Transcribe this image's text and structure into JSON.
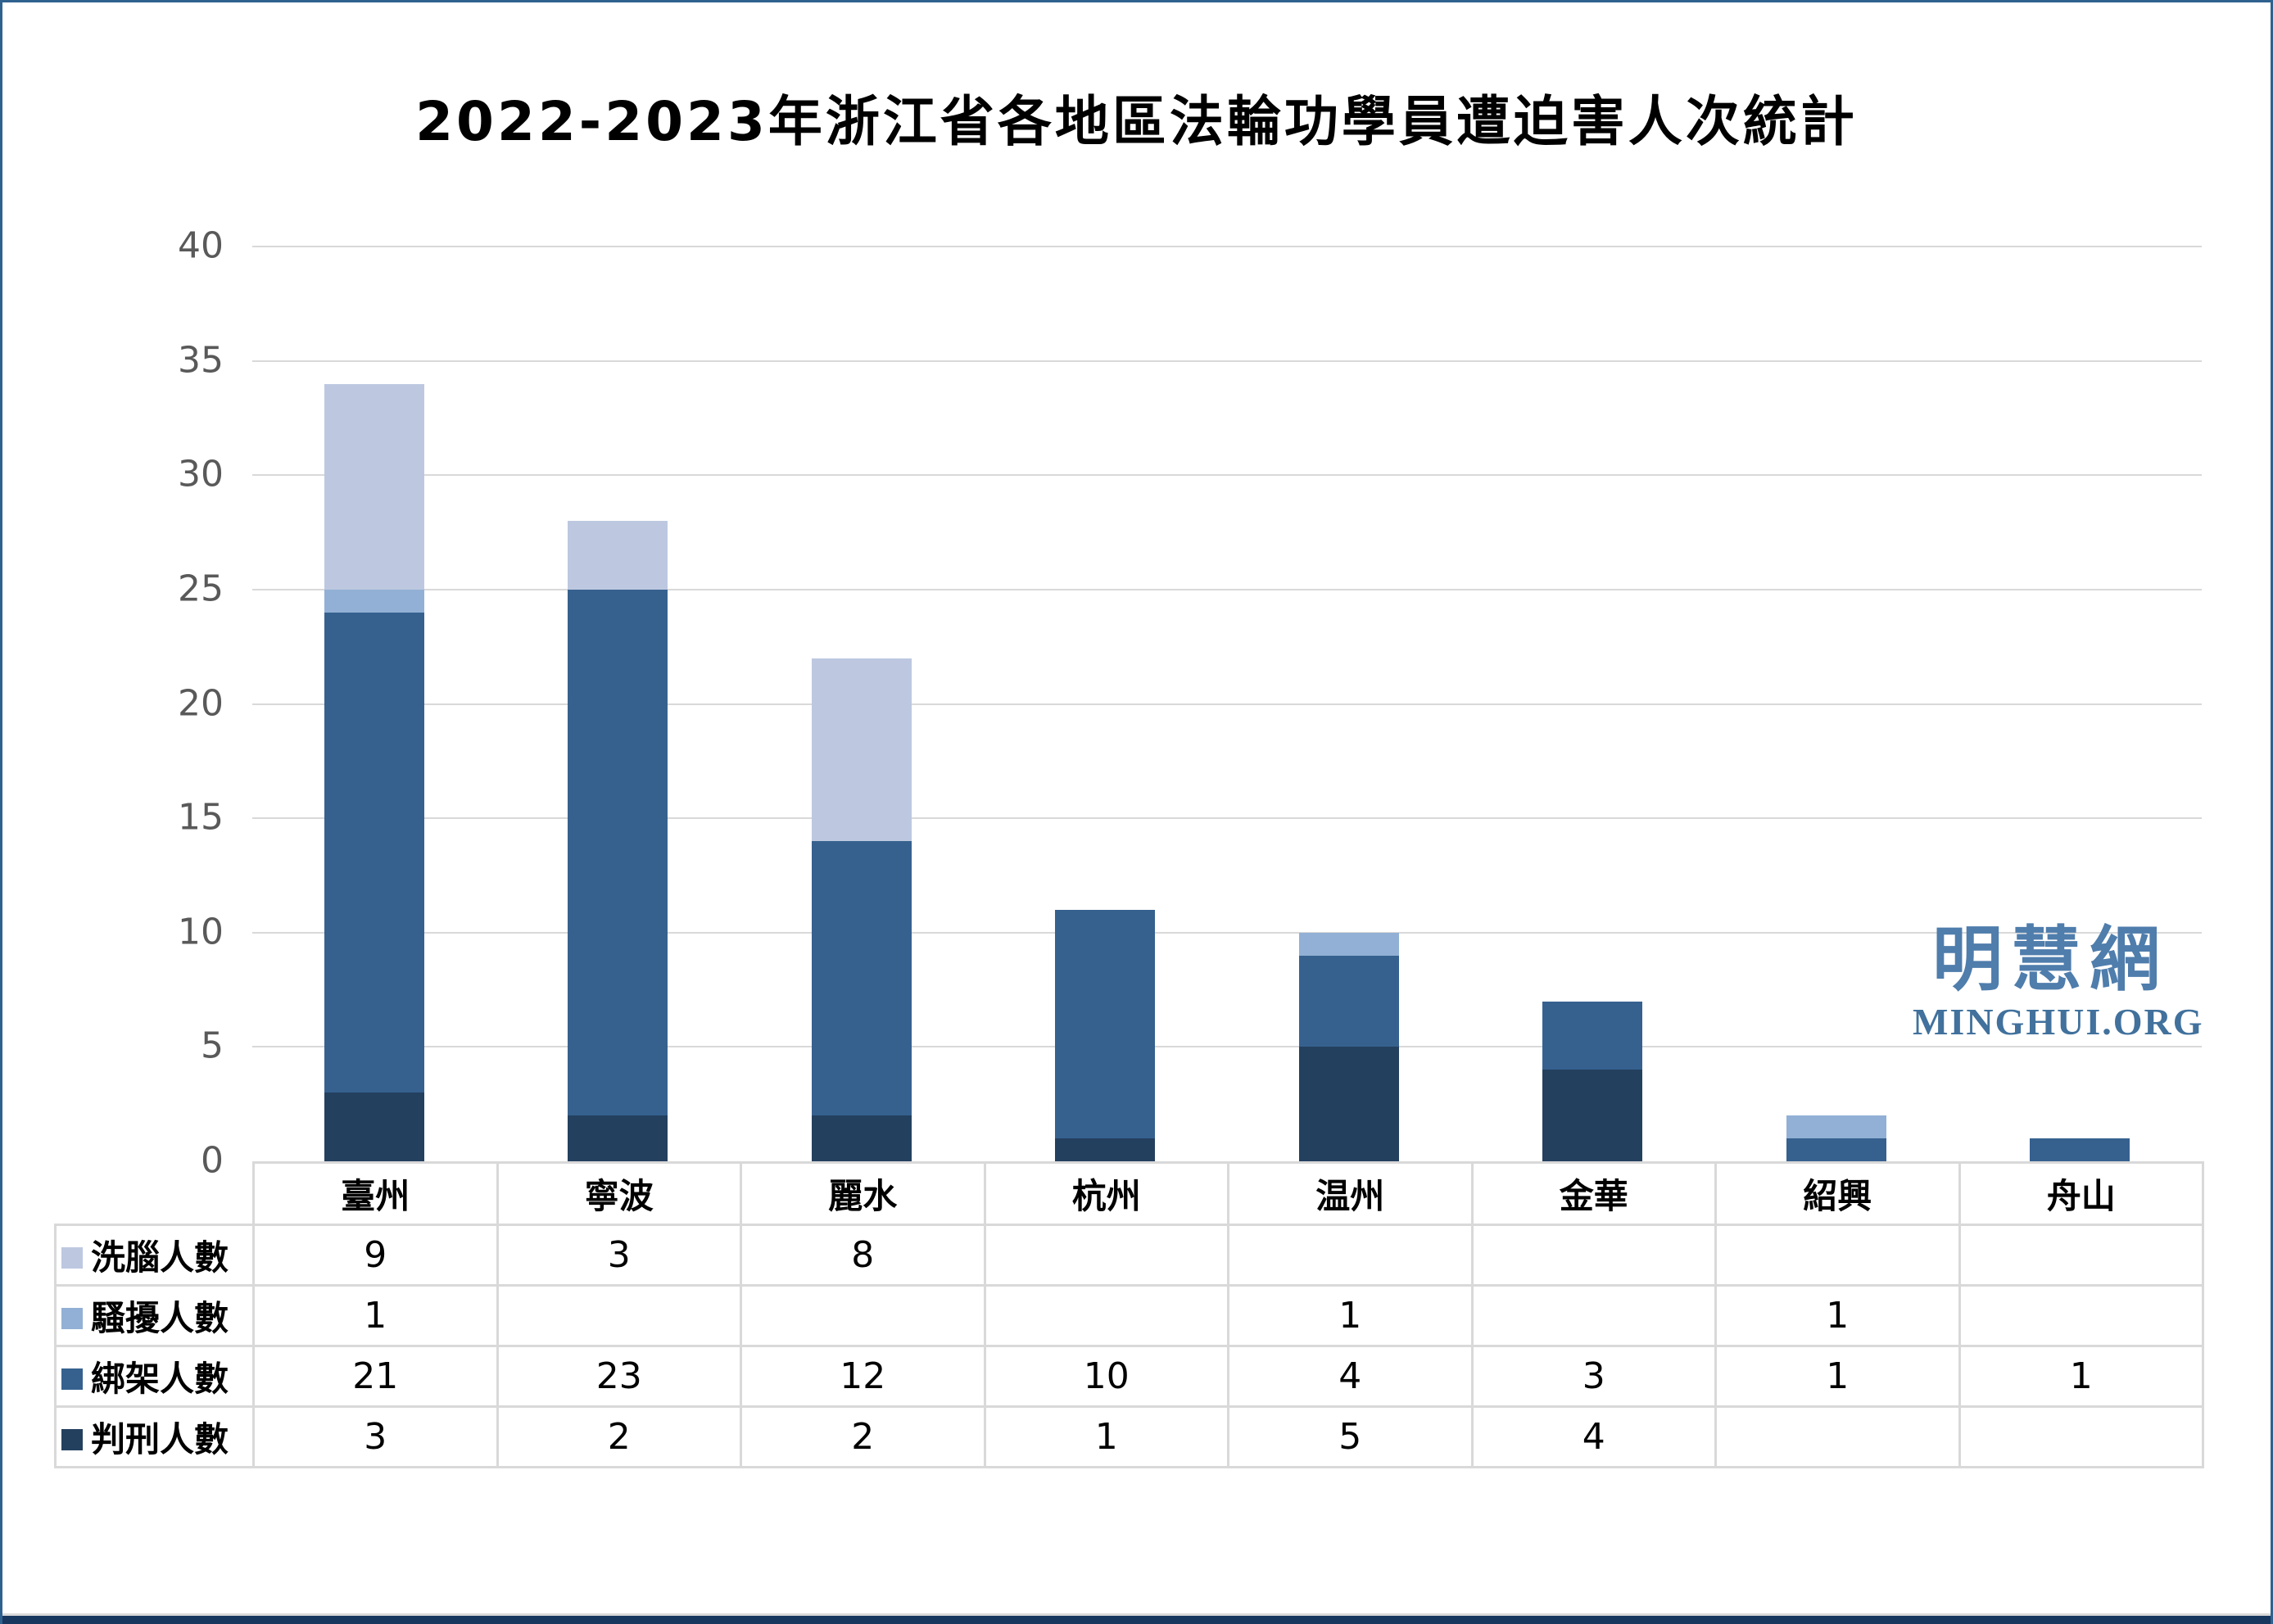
{
  "page": {
    "title": "2022-2023年浙江省各地區法輪功學員遭迫害人次統計"
  },
  "logo": {
    "cjk": "明慧網",
    "latin": "MINGHUI.ORG"
  },
  "chart_data": {
    "type": "bar",
    "stacked": true,
    "title": "2022-2023年浙江省各地區法輪功學員遭迫害人次統計",
    "categories": [
      "臺州",
      "寧波",
      "麗水",
      "杭州",
      "温州",
      "金華",
      "紹興",
      "舟山"
    ],
    "series": [
      {
        "name": "洗腦人數",
        "color": "#bdc8e0",
        "values": [
          9,
          3,
          8,
          null,
          null,
          null,
          null,
          null
        ]
      },
      {
        "name": "騷擾人數",
        "color": "#92b0d5",
        "values": [
          1,
          null,
          null,
          null,
          1,
          null,
          1,
          null
        ]
      },
      {
        "name": "綁架人數",
        "color": "#36618f",
        "values": [
          21,
          23,
          12,
          10,
          4,
          3,
          1,
          1
        ]
      },
      {
        "name": "判刑人數",
        "color": "#24405f",
        "values": [
          3,
          2,
          2,
          1,
          5,
          4,
          null,
          null
        ]
      }
    ],
    "stack_order_bottom_to_top": [
      "判刑人數",
      "綁架人數",
      "騷擾人數",
      "洗腦人數"
    ],
    "totals": [
      34,
      28,
      22,
      11,
      10,
      7,
      2,
      1
    ],
    "xlabel": "",
    "ylabel": "",
    "ylim": [
      0,
      40
    ],
    "yticks": [
      0,
      5,
      10,
      15,
      20,
      25,
      30,
      35,
      40
    ],
    "grid": "horizontal",
    "legend_position": "table-left-column"
  },
  "style": {
    "gridline_color": "#d9d9d9",
    "axis_label_color": "#595959",
    "table_border_color": "#d9d9d9",
    "frame_border_color": "#2f618f",
    "bottom_strip_color": "#17375e",
    "title_color": "#000000",
    "logo_cjk_color": "#4f7dac",
    "logo_latin_color": "#41719c"
  }
}
